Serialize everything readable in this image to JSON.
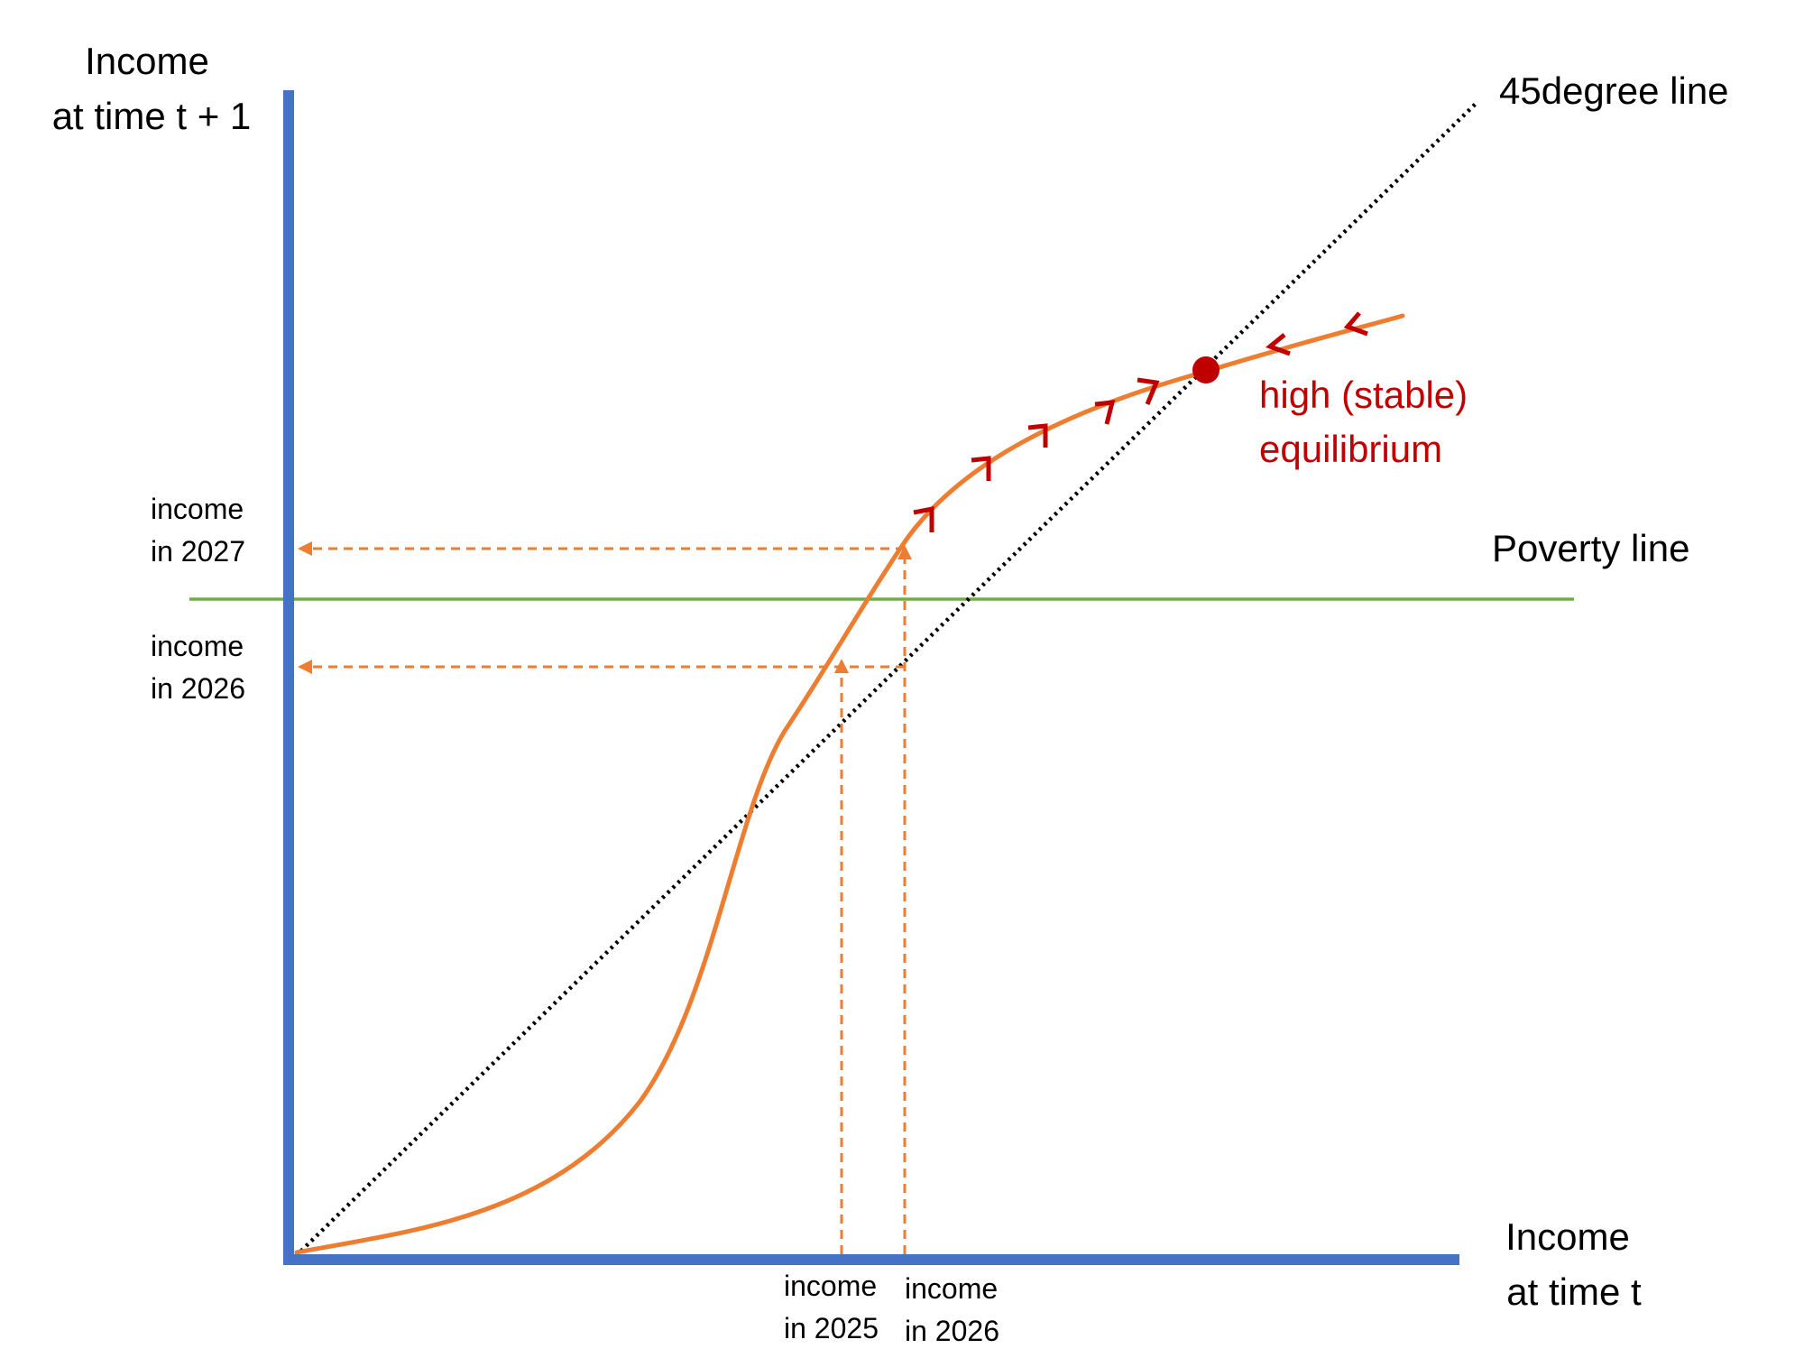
{
  "labels": {
    "y_axis_line1": "Income",
    "y_axis_line2": "at time t + 1",
    "x_axis_line1": "Income",
    "x_axis_line2": "at time t",
    "diagonal": "45degree line",
    "poverty": "Poverty line",
    "equilibrium_line1": "high (stable)",
    "equilibrium_line2": "equilibrium",
    "y_2027_line1": "income",
    "y_2027_line2": "in 2027",
    "y_2026_line1": "income",
    "y_2026_line2": "in 2026",
    "x_2025_line1": "income",
    "x_2025_line2": "in 2025",
    "x_2026_line1": "income",
    "x_2026_line2": "in 2026"
  },
  "colors": {
    "axis": "#4472C4",
    "curve": "#ED7D31",
    "poverty": "#70AD47",
    "diagonal": "#000000",
    "equilibrium": "#C00000",
    "text": "#000000"
  }
}
